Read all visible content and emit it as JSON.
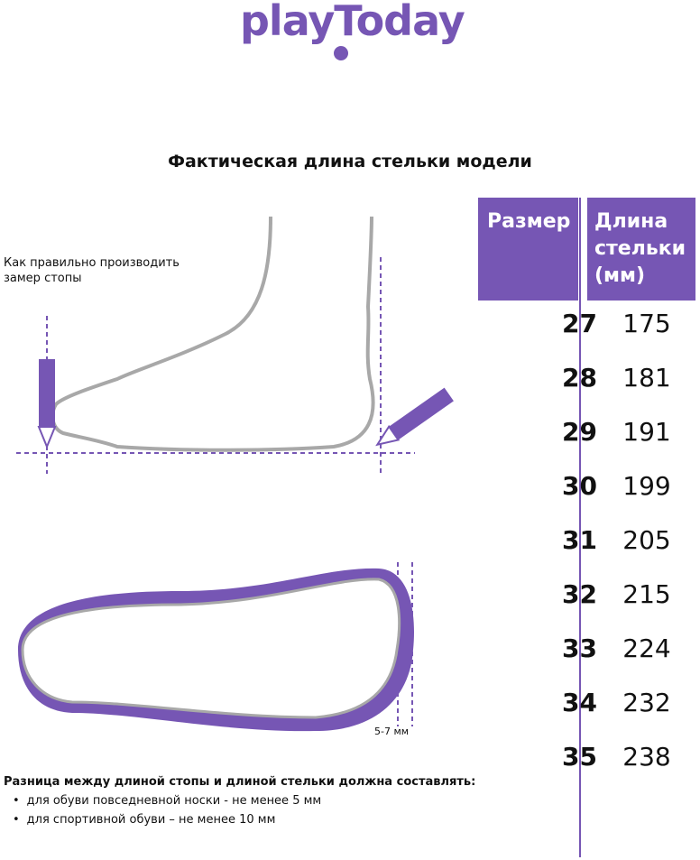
{
  "brand": {
    "logo_text": "playToday",
    "color": "#7656b4"
  },
  "title": "Фактическая длина стельки модели",
  "hint": "Как правильно производить замер стопы",
  "gap_label": "5-7 мм",
  "table": {
    "headers": {
      "size": "Размер",
      "length": "Длина стельки (мм)"
    },
    "rows": [
      {
        "size": "27",
        "length": "175"
      },
      {
        "size": "28",
        "length": "181"
      },
      {
        "size": "29",
        "length": "191"
      },
      {
        "size": "30",
        "length": "199"
      },
      {
        "size": "31",
        "length": "205"
      },
      {
        "size": "32",
        "length": "215"
      },
      {
        "size": "33",
        "length": "224"
      },
      {
        "size": "34",
        "length": "232"
      },
      {
        "size": "35",
        "length": "238"
      }
    ]
  },
  "note": {
    "heading": "Разница между длиной стопы и длиной стельки должна составлять:",
    "items": [
      "для обуви повседневной носки -  не менее 5 мм",
      "для спортивной обуви – не менее 10 мм"
    ]
  }
}
